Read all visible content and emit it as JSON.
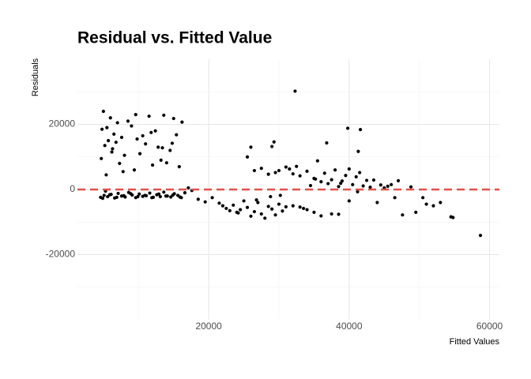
{
  "chart_data": {
    "type": "scatter",
    "title": "Residual vs. Fitted Value",
    "x_label": "Fitted Values",
    "y_label": "Residuals",
    "xlim": [
      1300,
      61400
    ],
    "ylim": [
      -40000,
      40000
    ],
    "xticks": [
      20000,
      40000,
      60000
    ],
    "yticks": [
      -20000,
      0,
      20000
    ],
    "x_minor_grid": [
      10000,
      30000,
      50000
    ],
    "y_minor_grid": [
      -30000,
      -10000,
      10000,
      30000
    ],
    "grid": true,
    "hline": {
      "value": 0,
      "color": "#e0524a"
    },
    "series": [
      {
        "color": "#000000",
        "x": [
          4600,
          5100,
          5600,
          6100,
          6600,
          7100,
          7600,
          8100,
          8600,
          9100,
          9600,
          10100,
          10600,
          11100,
          11600,
          12100,
          12600,
          13100,
          13600,
          14100,
          14600,
          15100,
          15600,
          16100,
          16600,
          4900,
          5900,
          6900,
          7900,
          8900,
          9900,
          10900,
          11900,
          12900,
          13900,
          14900,
          15900,
          17100,
          17600,
          5300,
          4700,
          4800,
          5000,
          5200,
          5500,
          5700,
          6000,
          6300,
          6500,
          6800,
          7000,
          7300,
          7600,
          8000,
          8500,
          9000,
          9400,
          9800,
          10200,
          10600,
          11000,
          11500,
          12000,
          12400,
          12800,
          13200,
          13600,
          14000,
          14500,
          15000,
          15400,
          15800,
          16200,
          5400,
          6200,
          7800,
          9600,
          11800,
          13400,
          14800,
          18500,
          19500,
          20500,
          21500,
          22500,
          23000,
          23500,
          24000,
          24500,
          25000,
          25500,
          26000,
          26500,
          27000,
          27500,
          28000,
          28500,
          29000,
          29500,
          30000,
          30500,
          31000,
          32000,
          33000,
          34000,
          35000,
          36000,
          22000,
          24200,
          26800,
          28800,
          30200,
          33500,
          37500,
          38500,
          25500,
          26500,
          27500,
          28500,
          29500,
          30000,
          31000,
          31500,
          32500,
          33000,
          34000,
          34500,
          35000,
          35500,
          36000,
          36500,
          37000,
          37500,
          38000,
          38500,
          39000,
          39500,
          40000,
          40500,
          41000,
          41500,
          42000,
          42500,
          43500,
          44500,
          45000,
          45500,
          46000,
          47000,
          29000,
          32000,
          35200,
          38800,
          41200,
          43000,
          32300,
          26000,
          29300,
          36800,
          39800,
          41300,
          41600,
          40000,
          46500,
          48800,
          49500,
          51000,
          52000,
          53000,
          54500,
          54800,
          58700,
          44000,
          47600,
          50500
        ],
        "values": [
          -2400,
          -1800,
          -2200,
          -1500,
          -2600,
          -1200,
          -2000,
          -2300,
          -900,
          -1700,
          -2500,
          -1400,
          -2100,
          -1900,
          -1100,
          -2400,
          -1600,
          -2200,
          -800,
          -2000,
          -2300,
          -1300,
          -1800,
          -2500,
          -1000,
          -2700,
          -1600,
          -2400,
          -1900,
          -1300,
          -2200,
          -1800,
          -2500,
          -1400,
          -2000,
          -1700,
          -2300,
          500,
          -300,
          -500,
          9500,
          18500,
          24000,
          13500,
          19000,
          15000,
          22000,
          12500,
          17000,
          14500,
          20500,
          8000,
          16000,
          10500,
          21000,
          19500,
          6000,
          15500,
          11000,
          16500,
          14000,
          22500,
          7500,
          18000,
          13000,
          9000,
          22800,
          8200,
          12000,
          21800,
          16800,
          7000,
          20700,
          4500,
          11500,
          5500,
          23000,
          17500,
          12800,
          14200,
          -3000,
          -3800,
          -2500,
          -4200,
          -5800,
          -6500,
          -4800,
          -7000,
          -6200,
          -3500,
          -5500,
          -8200,
          -6800,
          -4000,
          -7500,
          -8800,
          -5200,
          -6000,
          -7800,
          -4500,
          -6600,
          -5300,
          -5000,
          -5400,
          -6200,
          -7000,
          -8100,
          -5000,
          -7200,
          -3200,
          -2200,
          -1800,
          -5800,
          -7500,
          -7600,
          10000,
          5800,
          6500,
          4700,
          5200,
          5800,
          6900,
          6300,
          7100,
          4200,
          5600,
          1200,
          3400,
          8800,
          2400,
          5000,
          1800,
          3000,
          6000,
          900,
          2600,
          4300,
          6300,
          1500,
          3900,
          5200,
          1100,
          2800,
          2900,
          1400,
          500,
          1000,
          1500,
          2700,
          13200,
          4800,
          3200,
          1900,
          -700,
          700,
          30200,
          13000,
          14600,
          14300,
          18800,
          11700,
          18400,
          -3500,
          -2500,
          800,
          -7000,
          -4500,
          -5000,
          -4000,
          -8400,
          -8600,
          -14100,
          -4000,
          -7800,
          -2500
        ]
      }
    ]
  }
}
